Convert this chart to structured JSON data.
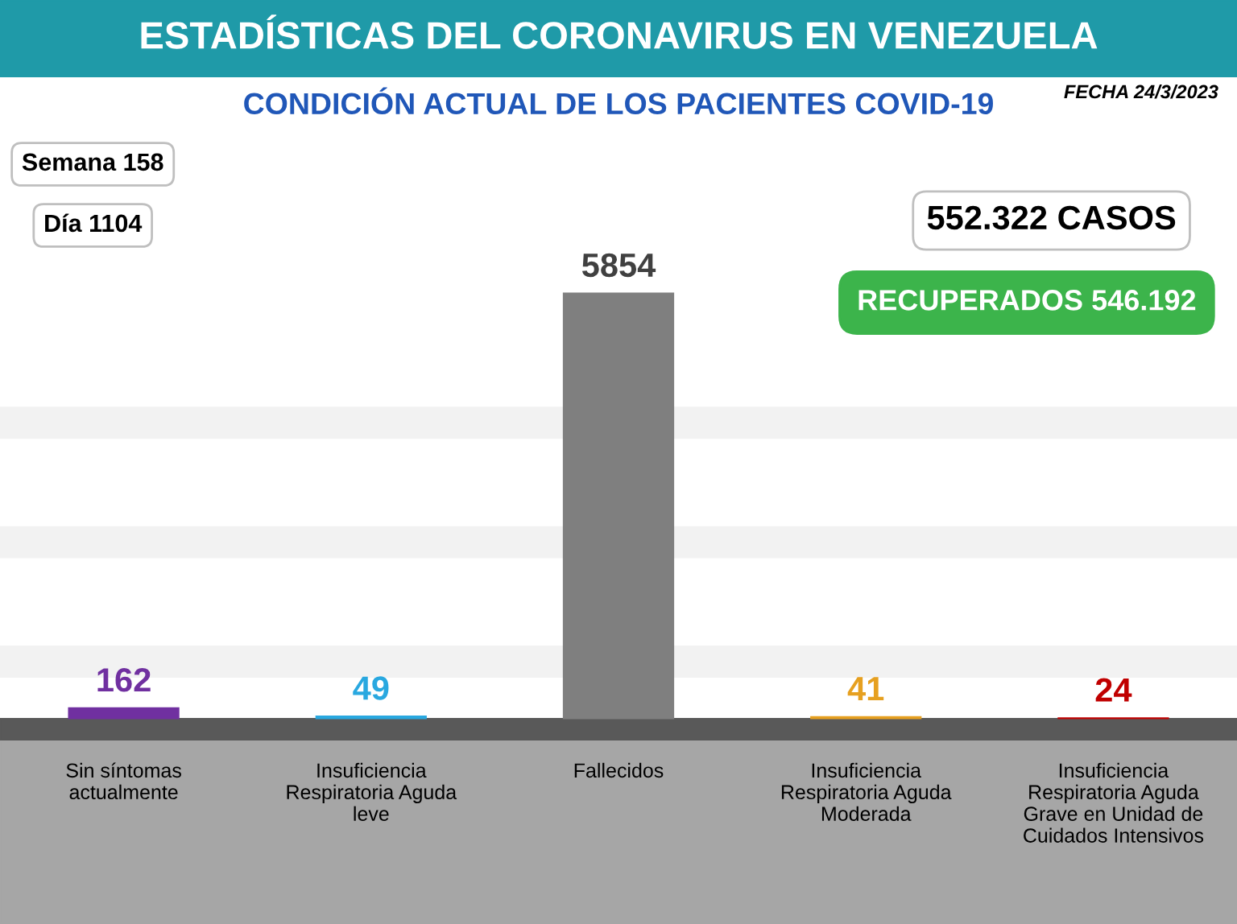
{
  "chart_data": {
    "type": "bar",
    "title": "ESTADÍSTICAS DEL CORONAVIRUS EN VENEZUELA",
    "subtitle": "CONDICIÓN ACTUAL DE LOS PACIENTES COVID-19",
    "categories": [
      "Sin síntomas\nactualmente",
      "Insuficiencia\nRespiratoria Aguda\nleve",
      "Fallecidos",
      "Insuficiencia\nRespiratoria Aguda\nModerada",
      "Insuficiencia\nRespiratoria Aguda\nGrave en Unidad de\nCuidados Intensivos"
    ],
    "values": [
      162,
      49,
      5854,
      41,
      24
    ],
    "colors": [
      "#7030a0",
      "#29a8e0",
      "#7f7f7f",
      "#e6a020",
      "#c00000"
    ],
    "data_labels": true,
    "annotations": [
      "FECHA 24/3/2023",
      "Semana 158",
      "Día 1104",
      "552.322 CASOS",
      "RECUPERADOS 546.192"
    ]
  }
}
